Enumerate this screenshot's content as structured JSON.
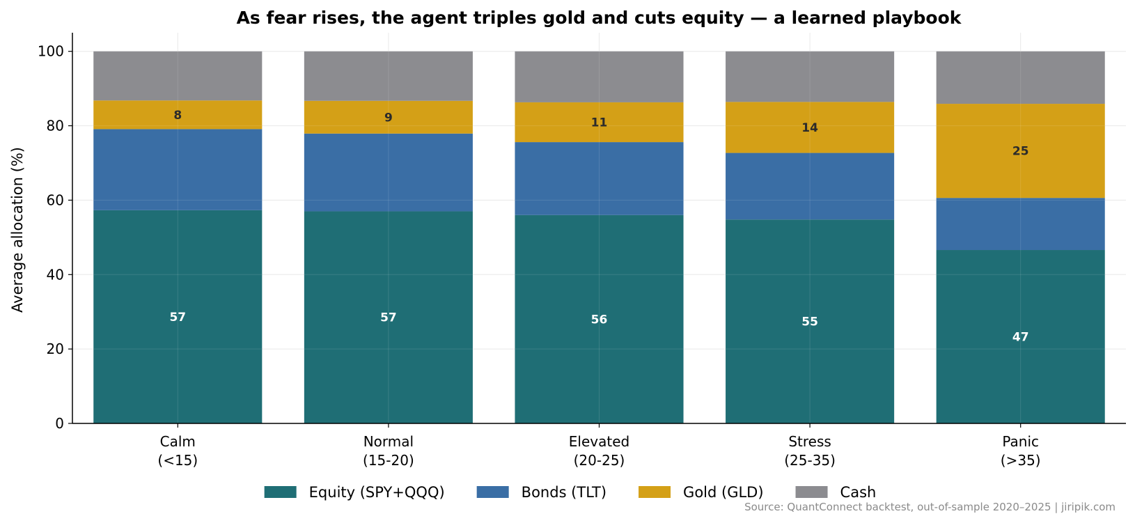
{
  "chart_data": {
    "type": "bar",
    "stacked": true,
    "title": "As fear rises, the agent triples gold and cuts equity — a learned playbook",
    "ylabel": "Average allocation (%)",
    "xlabel": "",
    "ylim": [
      0,
      105
    ],
    "yticks": [
      0,
      20,
      40,
      60,
      80,
      100
    ],
    "grid": true,
    "legend_position": "bottom-center",
    "categories": [
      [
        "Calm",
        "(<15)"
      ],
      [
        "Normal",
        "(15-20)"
      ],
      [
        "Elevated",
        "(20-25)"
      ],
      [
        "Stress",
        "(25-35)"
      ],
      [
        "Panic",
        "(>35)"
      ]
    ],
    "series": [
      {
        "name": "Equity (SPY+QQQ)",
        "color": "#1f6e75",
        "values": [
          57.3,
          57.0,
          56.0,
          54.8,
          46.6
        ],
        "labels": [
          "57",
          "57",
          "56",
          "55",
          "47"
        ],
        "label_color": "#ffffff"
      },
      {
        "name": "Bonds (TLT)",
        "color": "#3a6ea5",
        "values": [
          21.8,
          20.9,
          19.6,
          17.9,
          14.0
        ],
        "labels": [
          "",
          "",
          "",
          "",
          ""
        ],
        "label_color": "#ffffff"
      },
      {
        "name": "Gold (GLD)",
        "color": "#d4a017",
        "values": [
          7.7,
          8.8,
          10.7,
          13.7,
          25.3
        ],
        "labels": [
          "8",
          "9",
          "11",
          "14",
          "25"
        ],
        "label_color": "#2b2b2b"
      },
      {
        "name": "Cash",
        "color": "#8c8c90",
        "values": [
          13.2,
          13.3,
          13.7,
          13.6,
          14.1
        ],
        "labels": [
          "",
          "",
          "",
          "",
          ""
        ],
        "label_color": "#ffffff"
      }
    ],
    "source_note": "Source: QuantConnect backtest, out-of-sample 2020–2025  |  jiripik.com"
  }
}
